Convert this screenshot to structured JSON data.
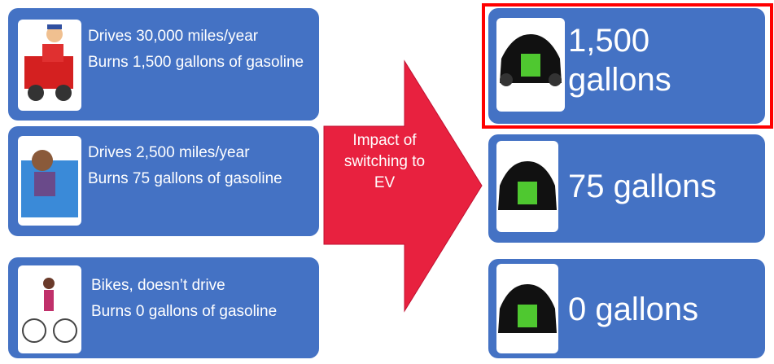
{
  "left_boxes": [
    {
      "line1": "Drives 30,000 miles/year",
      "line2": "Burns 1,500 gallons of gasoline"
    },
    {
      "line1": "Drives 2,500 miles/year",
      "line2": "Burns 75 gallons of gasoline"
    },
    {
      "line1": "Bikes, doesn’t drive",
      "line2": "Burns 0 gallons of gasoline"
    }
  ],
  "arrow_label": "Impact of switching to EV",
  "right_boxes": [
    "1,500 gallons",
    "75 gallons",
    "0 gallons"
  ]
}
